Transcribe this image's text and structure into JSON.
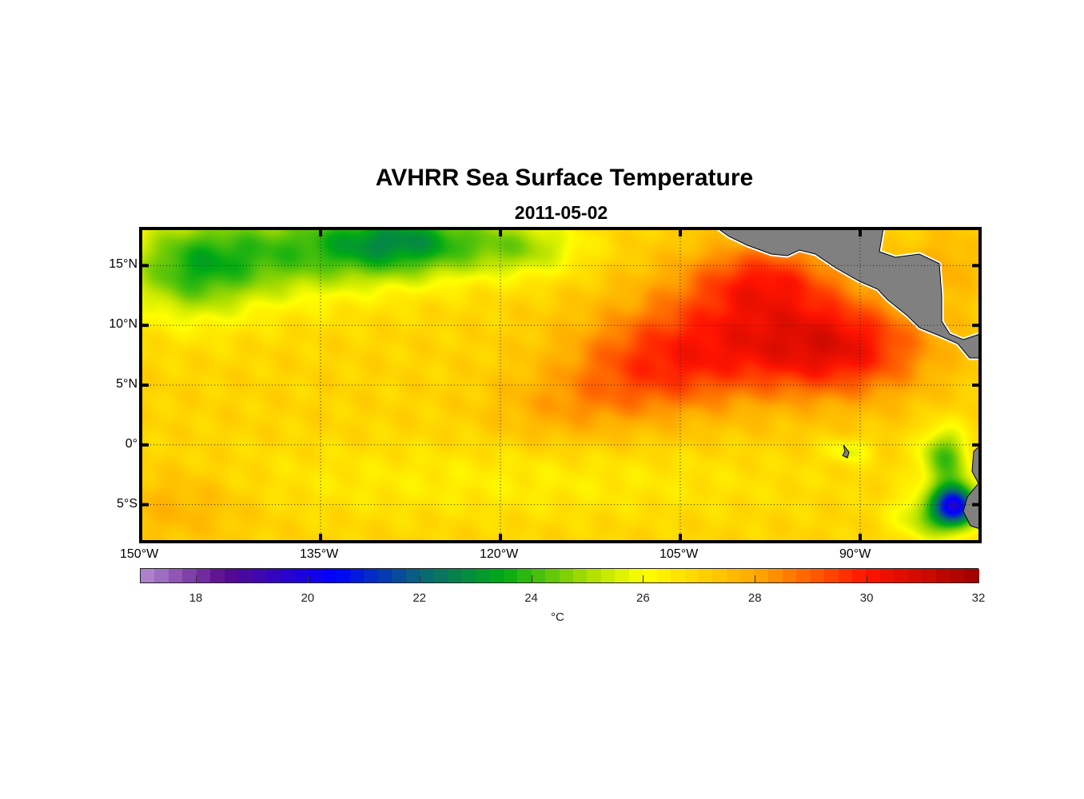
{
  "chart_data": {
    "type": "heatmap",
    "title": "AVHRR Sea Surface Temperature",
    "subtitle": "2011-05-02",
    "lon_range": [
      -150,
      -80
    ],
    "lat_range": [
      -8.1,
      18.1
    ],
    "x_ticks": [
      {
        "lon": -150,
        "label": "150°W"
      },
      {
        "lon": -135,
        "label": "135°W"
      },
      {
        "lon": -120,
        "label": "120°W"
      },
      {
        "lon": -105,
        "label": "105°W"
      },
      {
        "lon": -90,
        "label": "90°W"
      }
    ],
    "y_ticks": [
      {
        "lat": 15,
        "label": "15°N"
      },
      {
        "lat": 10,
        "label": "10°N"
      },
      {
        "lat": 5,
        "label": "5°N"
      },
      {
        "lat": 0,
        "label": "0°"
      },
      {
        "lat": -5,
        "label": "5°S"
      }
    ],
    "grid": true,
    "colorbar": {
      "range": [
        17,
        32
      ],
      "ticks": [
        18,
        20,
        22,
        24,
        26,
        28,
        30,
        32
      ],
      "label": "°C",
      "stops": [
        {
          "v": 17,
          "c": "#b48cd2"
        },
        {
          "v": 18.5,
          "c": "#5a0a8c"
        },
        {
          "v": 20.5,
          "c": "#0000ff"
        },
        {
          "v": 22,
          "c": "#0a6478"
        },
        {
          "v": 23.5,
          "c": "#00aa14"
        },
        {
          "v": 25,
          "c": "#aadd00"
        },
        {
          "v": 26,
          "c": "#ffff00"
        },
        {
          "v": 28,
          "c": "#ffaa00"
        },
        {
          "v": 30,
          "c": "#ff1400"
        },
        {
          "v": 32,
          "c": "#a00000"
        }
      ]
    },
    "base_temperature": 27.0,
    "field_anomalies": [
      {
        "lon": -140,
        "lat": 16,
        "dT": -2.6,
        "rlon": 10,
        "rlat": 4
      },
      {
        "lon": -128,
        "lat": 17,
        "dT": -3.6,
        "rlon": 7,
        "rlat": 3
      },
      {
        "lon": -146,
        "lat": 14,
        "dT": -1.8,
        "rlon": 5,
        "rlat": 4
      },
      {
        "lon": -118,
        "lat": 16.5,
        "dT": -1.8,
        "rlon": 5,
        "rlat": 2.5
      },
      {
        "lon": -100,
        "lat": 9,
        "dT": 2.6,
        "rlon": 10,
        "rlat": 5
      },
      {
        "lon": -91,
        "lat": 8,
        "dT": 2.4,
        "rlon": 7,
        "rlat": 4
      },
      {
        "lon": -108,
        "lat": 6,
        "dT": 1.6,
        "rlon": 7,
        "rlat": 4
      },
      {
        "lon": -98,
        "lat": 14,
        "dT": 2.0,
        "rlon": 6,
        "rlat": 3
      },
      {
        "lon": -115,
        "lat": 3,
        "dT": 0.8,
        "rlon": 6,
        "rlat": 3
      },
      {
        "lon": -120,
        "lat": -3,
        "dT": -0.6,
        "rlon": 25,
        "rlat": 3
      },
      {
        "lon": -83,
        "lat": 15,
        "dT": 0.8,
        "rlon": 3,
        "rlat": 3
      },
      {
        "lon": -83,
        "lat": -1,
        "dT": -2.8,
        "rlon": 2,
        "rlat": 2.5
      },
      {
        "lon": -82,
        "lat": -5,
        "dT": -5.8,
        "rlon": 1.8,
        "rlat": 1.8
      },
      {
        "lon": -84,
        "lat": -6,
        "dT": -2.2,
        "rlon": 3,
        "rlat": 2
      },
      {
        "lon": -147,
        "lat": -5,
        "dT": 0.8,
        "rlon": 6,
        "rlat": 3
      },
      {
        "lon": -91,
        "lat": -0.5,
        "dT": -1.2,
        "rlon": 2,
        "rlat": 1
      }
    ]
  }
}
